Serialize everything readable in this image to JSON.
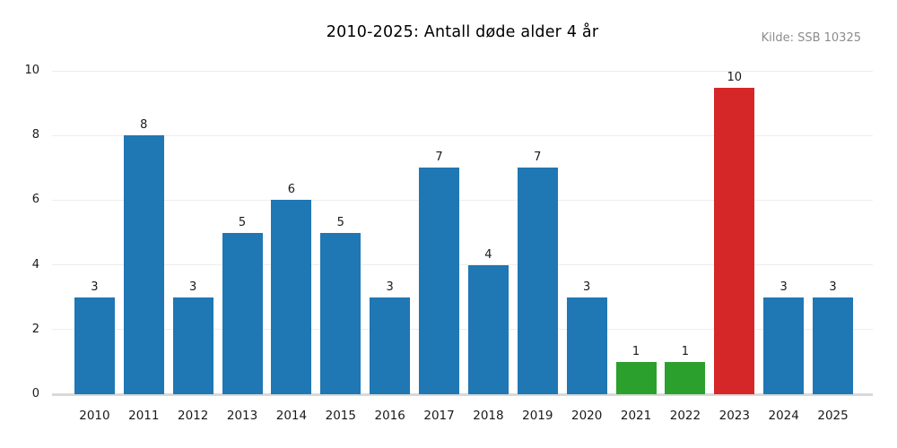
{
  "chart_data": {
    "type": "bar",
    "title": "2010-2025: Antall døde alder 4 år",
    "annotation": "Kilde: SSB 10325",
    "xlabel": "",
    "ylabel": "",
    "categories": [
      "2010",
      "2011",
      "2012",
      "2013",
      "2014",
      "2015",
      "2016",
      "2017",
      "2018",
      "2019",
      "2020",
      "2021",
      "2022",
      "2023",
      "2024",
      "2025"
    ],
    "values": [
      3,
      8,
      3,
      5,
      6,
      5,
      3,
      7,
      4,
      7,
      3,
      1,
      1,
      10,
      3,
      3
    ],
    "bar_colors": [
      "#1f77b4",
      "#1f77b4",
      "#1f77b4",
      "#1f77b4",
      "#1f77b4",
      "#1f77b4",
      "#1f77b4",
      "#1f77b4",
      "#1f77b4",
      "#1f77b4",
      "#1f77b4",
      "#2ca02c",
      "#2ca02c",
      "#d62728",
      "#1f77b4",
      "#1f77b4"
    ],
    "ylim": [
      0,
      10
    ],
    "yticks": [
      0,
      2,
      4,
      6,
      8,
      10
    ],
    "grid": true,
    "legend": "none",
    "value_labels": true,
    "colors": {
      "bar_default": "#1f77b4",
      "bar_low_highlight": "#2ca02c",
      "bar_high_highlight": "#d62728",
      "gridline": "#ededed",
      "axis_line": "#d9d9d9",
      "source_text": "#8c8c8c",
      "tick_text": "#1a1a1a",
      "title_text": "#000000"
    }
  }
}
